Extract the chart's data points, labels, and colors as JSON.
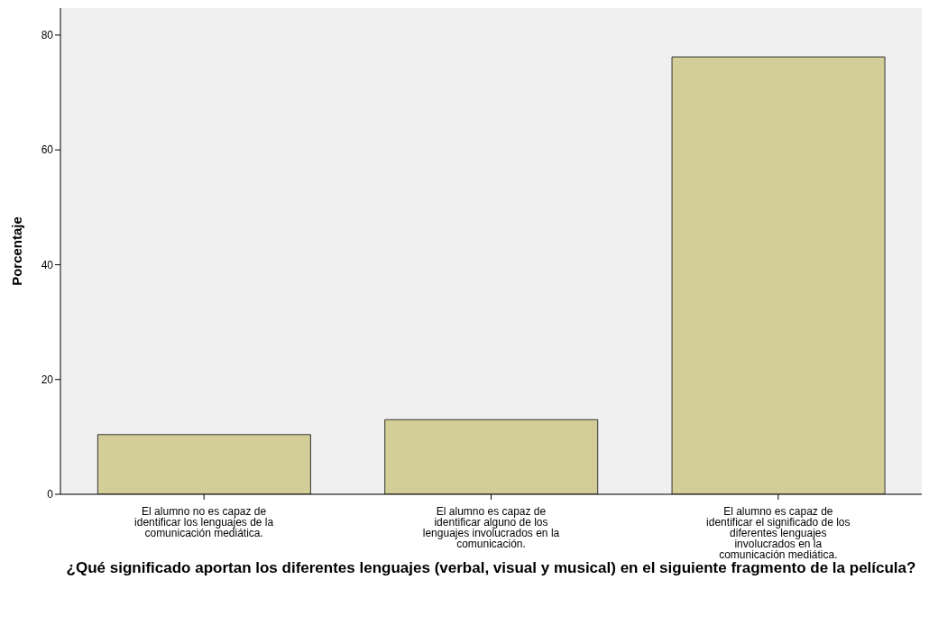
{
  "chart_data": {
    "type": "bar",
    "xlabel": "¿Qué significado aportan los diferentes lenguajes (verbal, visual y musical) en el siguiente fragmento de la película?",
    "ylabel": "Porcentaje",
    "categories": [
      "El alumno no es capaz de identificar los lenguajes de la comunicación mediática.",
      "El alumno es capaz de identificar alguno de los lenguajes involucrados en la comunicación.",
      "El alumno es capaz de identificar el significado de los diferentes lenguajes involucrados en la comunicación mediática."
    ],
    "values": [
      10.4,
      13.0,
      76.2
    ],
    "color": "#d3ce97",
    "ylim": [
      0,
      84.7
    ],
    "yticks": [
      0,
      20,
      40,
      60,
      80
    ],
    "grid": false
  }
}
